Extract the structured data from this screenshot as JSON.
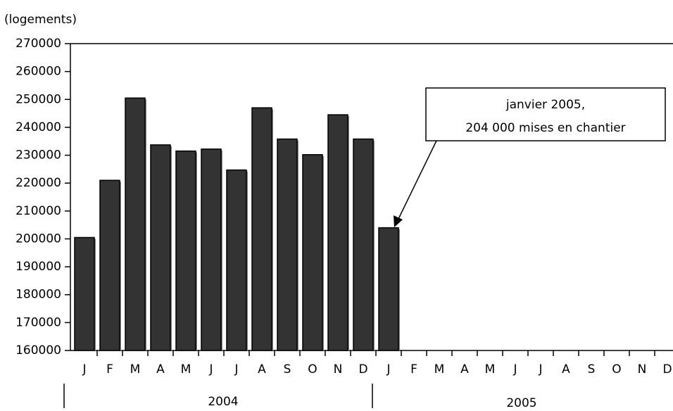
{
  "chart_data": {
    "type": "bar",
    "y_label": "(logements)",
    "categories": [
      "J",
      "F",
      "M",
      "A",
      "M",
      "J",
      "J",
      "A",
      "S",
      "O",
      "N",
      "D",
      "J",
      "F",
      "M",
      "A",
      "M",
      "J",
      "J",
      "A",
      "S",
      "O",
      "N",
      "D"
    ],
    "values": [
      200500,
      221000,
      250500,
      233700,
      231500,
      232200,
      224700,
      247000,
      235800,
      230200,
      244500,
      235800,
      204000,
      null,
      null,
      null,
      null,
      null,
      null,
      null,
      null,
      null,
      null,
      null
    ],
    "color": "#333333",
    "ylim": [
      160000,
      270000
    ],
    "yticks": [
      160000,
      170000,
      180000,
      190000,
      200000,
      210000,
      220000,
      230000,
      240000,
      250000,
      260000,
      270000
    ],
    "groups": [
      "2004",
      "2005"
    ],
    "annotation": [
      "janvier 2005,",
      "204 000 mises en chantier"
    ]
  }
}
